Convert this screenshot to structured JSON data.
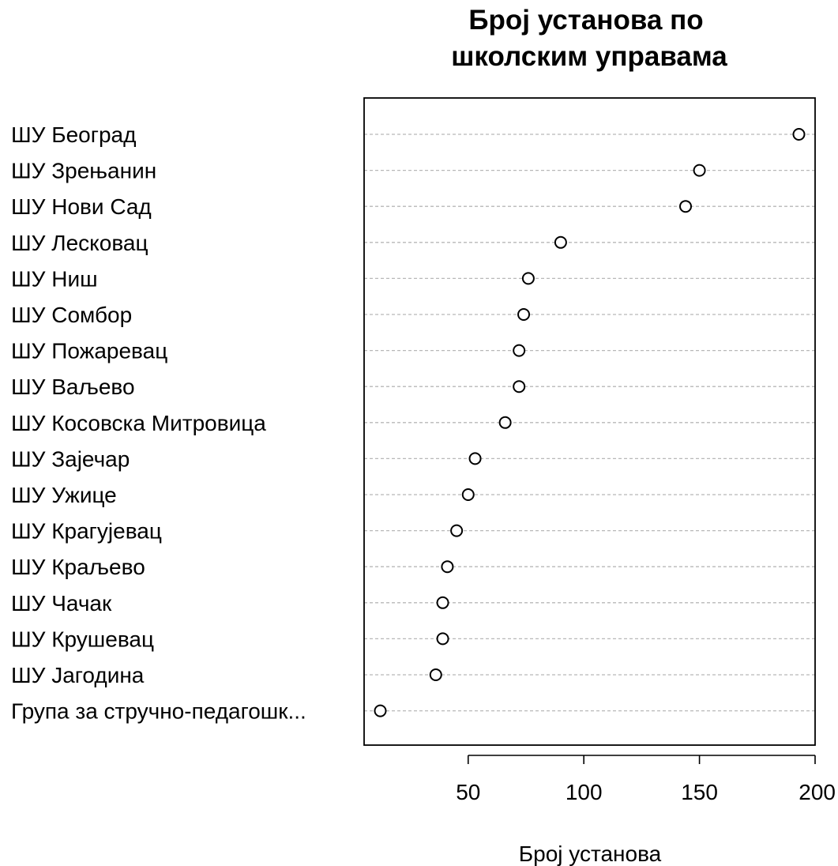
{
  "chart_data": {
    "type": "scatter",
    "title_lines": [
      "Број установа по",
      "школским управама"
    ],
    "xlabel": "Број установа",
    "ylabel": "",
    "xlim": [
      5,
      200
    ],
    "x_ticks": [
      50,
      100,
      150,
      200
    ],
    "grid": "horizontal dashed",
    "legend": "none",
    "categories": [
      "ШУ Београд",
      "ШУ Зрењанин",
      "ШУ Нови Сад",
      "ШУ Лесковац",
      "ШУ Ниш",
      "ШУ Сомбор",
      "ШУ Пожаревац",
      "ШУ Ваљево",
      "ШУ Косовска Митровица",
      "ШУ Зајечар",
      "ШУ Ужице",
      "ШУ Крагујевац",
      "ШУ Краљево",
      "ШУ Чачак",
      "ШУ Крушевац",
      "ШУ Јагодина",
      "Група за стручно-педагошк..."
    ],
    "values": [
      193,
      150,
      144,
      90,
      76,
      74,
      72,
      72,
      66,
      53,
      50,
      45,
      41,
      39,
      39,
      36,
      12
    ]
  },
  "colors": {
    "point_fill": "#ffffff",
    "point_stroke": "#000000",
    "gridline": "#b8b8b8",
    "frame": "#000000"
  }
}
